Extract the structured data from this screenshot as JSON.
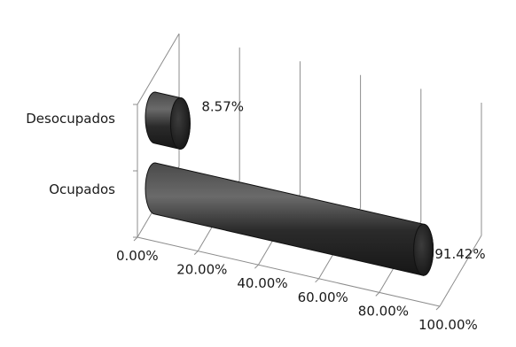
{
  "chart_data": {
    "type": "bar",
    "orientation": "horizontal",
    "style": "3d-cylinder",
    "categories": [
      "Desocupados",
      "Ocupados"
    ],
    "values": [
      8.57,
      91.42
    ],
    "data_labels": [
      "8.57%",
      "91.42%"
    ],
    "x_ticks": [
      "0.00%",
      "20.00%",
      "40.00%",
      "60.00%",
      "80.00%",
      "100.00%"
    ],
    "xlim": [
      0,
      100
    ],
    "grid": true,
    "legend": "none",
    "title": "",
    "xlabel": "",
    "ylabel": "",
    "colors": {
      "bar": "#2b2b2b",
      "bar_highlight": "#6a6a6a",
      "grid": "#8c8c8c"
    }
  }
}
